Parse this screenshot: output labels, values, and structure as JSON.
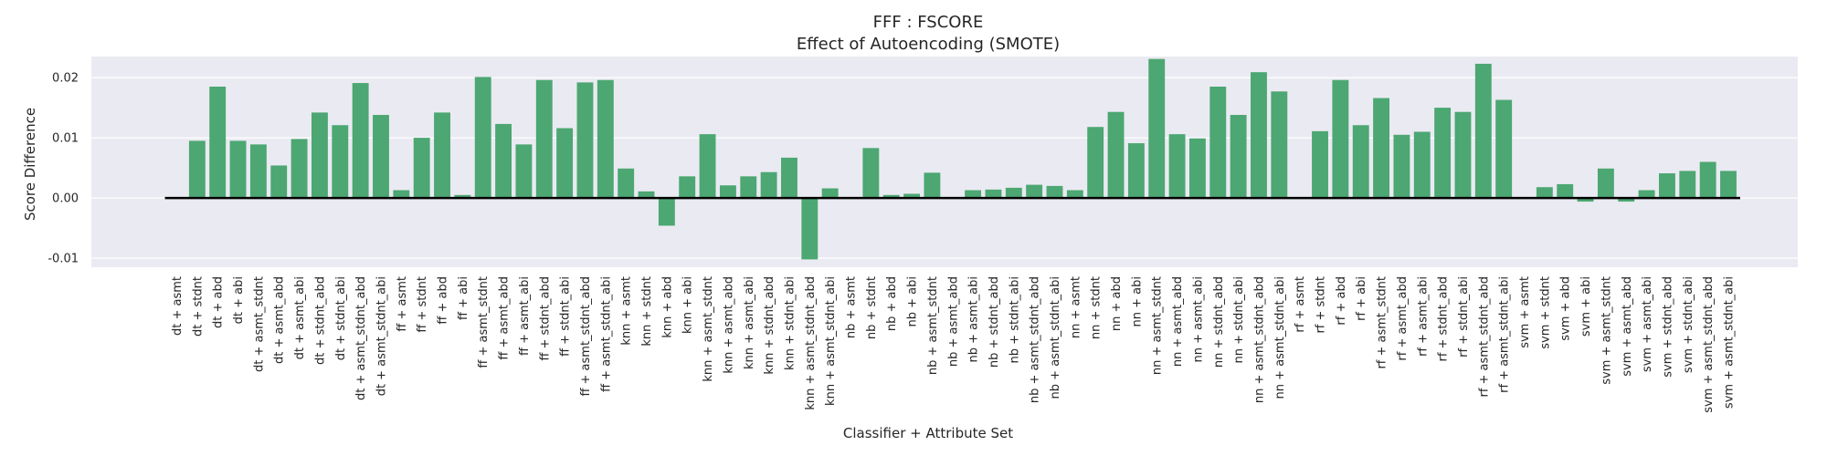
{
  "chart_data": {
    "type": "bar",
    "title": "FFF : FSCORE",
    "subtitle": "Effect of Autoencoding (SMOTE)",
    "xlabel": "Classifier + Attribute Set",
    "ylabel": "Score Difference",
    "ylim": [
      -0.0115,
      0.0235
    ],
    "yticks": [
      -0.01,
      0.0,
      0.01,
      0.02
    ],
    "ytick_labels": [
      "-0.01",
      "0.00",
      "0.01",
      "0.02"
    ],
    "grid": true,
    "bar_color": "#4ca772",
    "zero_line_color": "#000000",
    "plot_background": "#eaeaf2",
    "categories": [
      "dt + asmt",
      "dt + stdnt",
      "dt + abd",
      "dt + abi",
      "dt + asmt_stdnt",
      "dt + asmt_abd",
      "dt + asmt_abi",
      "dt + stdnt_abd",
      "dt + stdnt_abi",
      "dt + asmt_stdnt_abd",
      "dt + asmt_stdnt_abi",
      "ff + asmt",
      "ff + stdnt",
      "ff + abd",
      "ff + abi",
      "ff + asmt_stdnt",
      "ff + asmt_abd",
      "ff + asmt_abi",
      "ff + stdnt_abd",
      "ff + stdnt_abi",
      "ff + asmt_stdnt_abd",
      "ff + asmt_stdnt_abi",
      "knn + asmt",
      "knn + stdnt",
      "knn + abd",
      "knn + abi",
      "knn + asmt_stdnt",
      "knn + asmt_abd",
      "knn + asmt_abi",
      "knn + stdnt_abd",
      "knn + stdnt_abi",
      "knn + asmt_stdnt_abd",
      "knn + asmt_stdnt_abi",
      "nb + asmt",
      "nb + stdnt",
      "nb + abd",
      "nb + abi",
      "nb + asmt_stdnt",
      "nb + asmt_abd",
      "nb + asmt_abi",
      "nb + stdnt_abd",
      "nb + stdnt_abi",
      "nb + asmt_stdnt_abd",
      "nb + asmt_stdnt_abi",
      "nn + asmt",
      "nn + stdnt",
      "nn + abd",
      "nn + abi",
      "nn + asmt_stdnt",
      "nn + asmt_abd",
      "nn + asmt_abi",
      "nn + stdnt_abd",
      "nn + stdnt_abi",
      "nn + asmt_stdnt_abd",
      "nn + asmt_stdnt_abi",
      "rf + asmt",
      "rf + stdnt",
      "rf + abd",
      "rf + abi",
      "rf + asmt_stdnt",
      "rf + asmt_abd",
      "rf + asmt_abi",
      "rf + stdnt_abd",
      "rf + stdnt_abi",
      "rf + asmt_stdnt_abd",
      "rf + asmt_stdnt_abi",
      "svm + asmt",
      "svm + stdnt",
      "svm + abd",
      "svm + abi",
      "svm + asmt_stdnt",
      "svm + asmt_abd",
      "svm + asmt_abi",
      "svm + stdnt_abd",
      "svm + stdnt_abi",
      "svm + asmt_stdnt_abd",
      "svm + asmt_stdnt_abi"
    ],
    "values": [
      0.0,
      0.0095,
      0.0185,
      0.0095,
      0.0089,
      0.0054,
      0.0098,
      0.0142,
      0.0121,
      0.0191,
      0.0138,
      0.0013,
      0.01,
      0.0142,
      0.0005,
      0.0201,
      0.0123,
      0.0089,
      0.0196,
      0.0116,
      0.0192,
      0.0196,
      0.0049,
      0.0011,
      -0.0046,
      0.0036,
      0.0106,
      0.0021,
      0.0036,
      0.0043,
      0.0067,
      -0.0102,
      0.0016,
      0.0,
      0.0083,
      0.0005,
      0.0007,
      0.0042,
      0.0,
      0.0013,
      0.0014,
      0.0017,
      0.0022,
      0.002,
      0.0013,
      0.0118,
      0.0143,
      0.0091,
      0.0231,
      0.0106,
      0.0099,
      0.0185,
      0.0138,
      0.0209,
      0.0177,
      0.0,
      0.0111,
      0.0196,
      0.0121,
      0.0166,
      0.0105,
      0.011,
      0.015,
      0.0143,
      0.0223,
      0.0163,
      0.0,
      0.0018,
      0.0023,
      -0.0006,
      0.0049,
      -0.0006,
      0.0013,
      0.0041,
      0.0045,
      0.006,
      0.0045
    ]
  }
}
